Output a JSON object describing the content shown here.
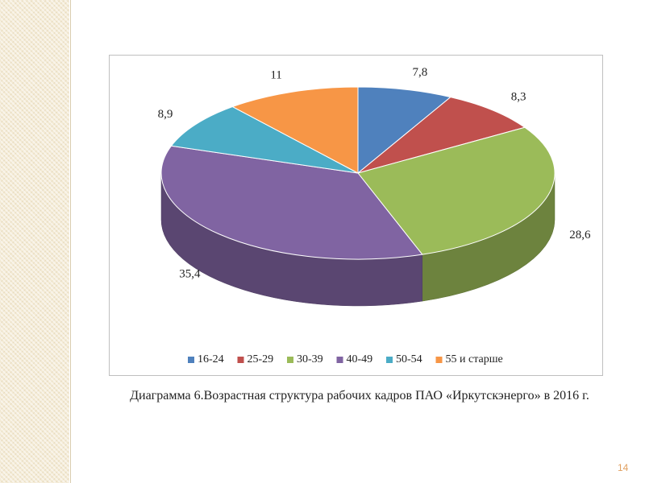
{
  "chart_data": {
    "type": "pie",
    "categories": [
      "16-24",
      "25-29",
      "30-39",
      "40-49",
      "50-54",
      "55 и старше"
    ],
    "values": [
      7.8,
      8.3,
      28.6,
      35.4,
      8.9,
      11
    ],
    "value_labels": [
      "7,8",
      "8,3",
      "28,6",
      "35,4",
      "8,9",
      "11"
    ],
    "colors": [
      "#4f81bd",
      "#c0504d",
      "#9bbb59",
      "#8064a2",
      "#4bacc6",
      "#f79646"
    ],
    "legend": "bottom"
  },
  "caption": "Диаграмма 6.Возрастная структура рабочих кадров ПАО «Иркутскэнерго» в 2016 г.",
  "page_number": "14"
}
